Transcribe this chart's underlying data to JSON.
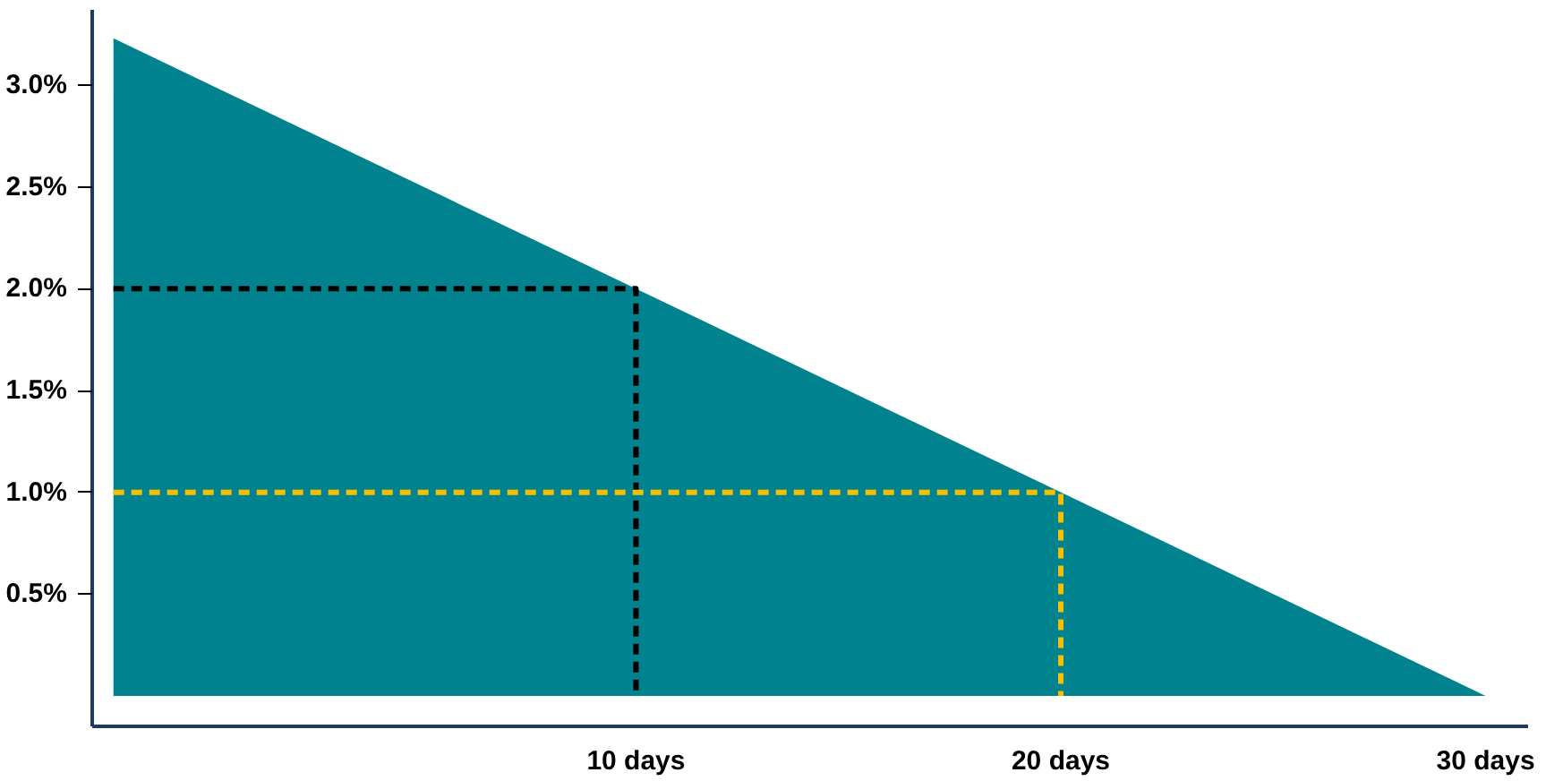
{
  "chart_data": {
    "type": "area",
    "series": [
      {
        "color": "#00838f",
        "x": [
          -2.3,
          30
        ],
        "values": [
          3.23,
          0
        ]
      },
      {
        "type": "line",
        "color": "#000000",
        "line_style": "dashed",
        "x": [
          -2.3,
          10,
          10
        ],
        "values": [
          2.0,
          2.0,
          0
        ]
      },
      {
        "type": "line",
        "color": "#f5c000",
        "line_style": "dashed",
        "x": [
          -2.3,
          20,
          20
        ],
        "values": [
          1.0,
          1.0,
          0
        ]
      }
    ],
    "xlim": [
      -2.8,
      31
    ],
    "ylim": [
      -0.15,
      3.37
    ],
    "xticks": [
      {
        "value": 10,
        "label": "10 days"
      },
      {
        "value": 20,
        "label": "20 days"
      },
      {
        "value": 30,
        "label": "30 days"
      }
    ],
    "yticks": [
      {
        "value": 0.5,
        "label": "0.5%"
      },
      {
        "value": 1.0,
        "label": "1.0%"
      },
      {
        "value": 1.5,
        "label": "1.5%"
      },
      {
        "value": 2.0,
        "label": "2.0%"
      },
      {
        "value": 2.5,
        "label": "2.5%"
      },
      {
        "value": 3.0,
        "label": "3.0%"
      }
    ],
    "grid": false
  }
}
